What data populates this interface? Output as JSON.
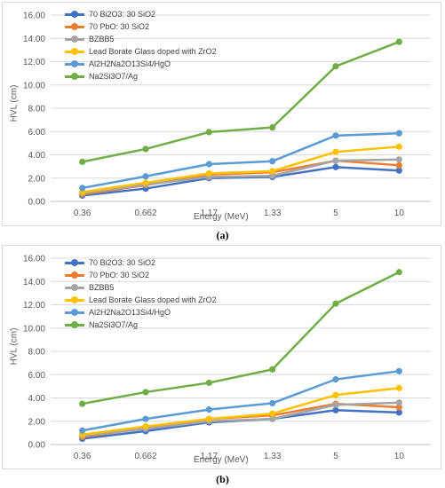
{
  "chart_data": [
    {
      "type": "line",
      "panel_label": "(a)",
      "categories": [
        "0.36",
        "0.662",
        "1.17",
        "1.33",
        "5",
        "10"
      ],
      "xlabel": "Energy (MeV)",
      "ylabel": "HVL (cm)",
      "ylim": [
        0,
        16
      ],
      "yticks": [
        "0.00",
        "2.00",
        "4.00",
        "6.00",
        "8.00",
        "10.00",
        "12.00",
        "14.00",
        "16.00"
      ],
      "grid": true,
      "legend_position": "top-left",
      "series": [
        {
          "name": "70 Bi2O3: 30 SiO2",
          "color": "#4472c4",
          "values": [
            0.5,
            1.1,
            2.0,
            2.1,
            2.95,
            2.65
          ]
        },
        {
          "name": "70 PbO: 30 SiO2",
          "color": "#ed7d31",
          "values": [
            0.6,
            1.4,
            2.3,
            2.5,
            3.5,
            3.1
          ]
        },
        {
          "name": "BZBB5",
          "color": "#a5a5a5",
          "values": [
            0.7,
            1.45,
            2.1,
            2.2,
            3.5,
            3.6
          ]
        },
        {
          "name": "Lead Borate Glass doped with ZrO2",
          "color": "#ffc000",
          "values": [
            0.8,
            1.6,
            2.4,
            2.6,
            4.25,
            4.7
          ]
        },
        {
          "name": "Al2H2Na2O13Si4/HgO",
          "color": "#5b9bd5",
          "values": [
            1.15,
            2.15,
            3.2,
            3.45,
            5.65,
            5.85
          ]
        },
        {
          "name": "Na2Si3O7/Ag",
          "color": "#70ad47",
          "values": [
            3.4,
            4.5,
            5.95,
            6.35,
            11.6,
            13.7
          ]
        }
      ]
    },
    {
      "type": "line",
      "panel_label": "(b)",
      "categories": [
        "0.36",
        "0.662",
        "1.17",
        "1.33",
        "5",
        "10"
      ],
      "xlabel": "Energy (MeV)",
      "ylabel": "HVL (cm)",
      "ylim": [
        0,
        16
      ],
      "yticks": [
        "0.00",
        "2.00",
        "4.00",
        "6.00",
        "8.00",
        "10.00",
        "12.00",
        "14.00",
        "16.00"
      ],
      "grid": true,
      "legend_position": "top-left",
      "series": [
        {
          "name": "70 Bi2O3: 30 SiO2",
          "color": "#4472c4",
          "values": [
            0.5,
            1.15,
            1.9,
            2.2,
            2.95,
            2.75
          ]
        },
        {
          "name": "70 PbO: 30 SiO2",
          "color": "#ed7d31",
          "values": [
            0.65,
            1.4,
            2.2,
            2.5,
            3.5,
            3.2
          ]
        },
        {
          "name": "BZBB5",
          "color": "#a5a5a5",
          "values": [
            0.75,
            1.35,
            2.0,
            2.2,
            3.4,
            3.6
          ]
        },
        {
          "name": "Lead Borate Glass doped with ZrO2",
          "color": "#ffc000",
          "values": [
            0.85,
            1.55,
            2.2,
            2.65,
            4.25,
            4.85
          ]
        },
        {
          "name": "Al2H2Na2O13Si4/HgO",
          "color": "#5b9bd5",
          "values": [
            1.2,
            2.2,
            3.0,
            3.55,
            5.6,
            6.3
          ]
        },
        {
          "name": "Na2Si3O7/Ag",
          "color": "#70ad47",
          "values": [
            3.5,
            4.5,
            5.3,
            6.45,
            12.1,
            14.8
          ]
        }
      ]
    }
  ]
}
